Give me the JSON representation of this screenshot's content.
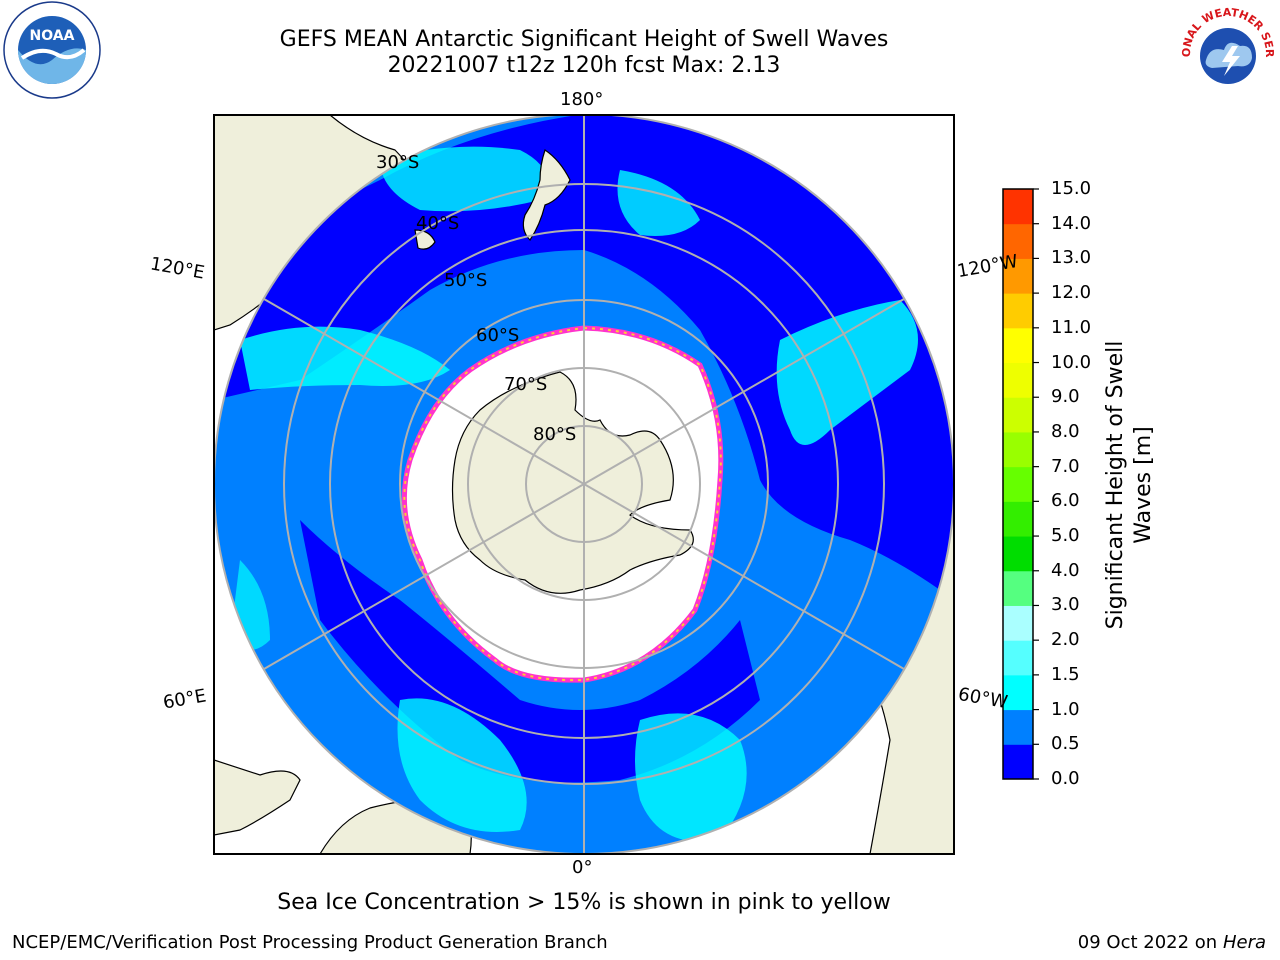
{
  "header": {
    "title": "GEFS MEAN Antarctic Significant Height of Swell Waves",
    "subtitle": "20221007 t12z 120h fcst   Max: 2.13"
  },
  "logos": {
    "left": "NOAA",
    "right": "NATIONAL WEATHER SERVICE"
  },
  "map": {
    "projection": "south-polar-stereographic",
    "longitude_labels": {
      "top": "180°",
      "bottom": "0°",
      "upper_left": "120°E",
      "upper_right": "120°W",
      "lower_left": "60°E",
      "lower_right": "60°W"
    },
    "latitude_labels": [
      "30°S",
      "40°S",
      "50°S",
      "60°S",
      "70°S",
      "80°S"
    ],
    "land_color": "#efefdb",
    "sea_ice_colors": [
      "#ff33cc",
      "#ffcc33"
    ]
  },
  "colorbar": {
    "label": "Significant Height of Swell Waves [m]",
    "label_line1": "Significant Height of Swell",
    "label_line2": "Waves [m]",
    "ticks": [
      "0.0",
      "0.5",
      "1.0",
      "1.5",
      "2.0",
      "3.0",
      "4.0",
      "5.0",
      "6.0",
      "7.0",
      "8.0",
      "9.0",
      "10.0",
      "11.0",
      "12.0",
      "13.0",
      "14.0",
      "15.0"
    ],
    "colors": [
      "#0000ff",
      "#0080ff",
      "#00ffff",
      "#55ffff",
      "#aaffff",
      "#55ff80",
      "#00dd00",
      "#33ee00",
      "#66ff00",
      "#99ff00",
      "#ccff00",
      "#eeff00",
      "#ffff00",
      "#ffcc00",
      "#ff9900",
      "#ff6600",
      "#ff3300",
      "#ff0000"
    ]
  },
  "footer": {
    "ice_note": "Sea Ice Concentration > 15% is shown in pink to yellow",
    "credit": "NCEP/EMC/Verification Post Processing Product Generation Branch",
    "date_prefix": "09 Oct 2022 on ",
    "date_machine": "Hera"
  }
}
